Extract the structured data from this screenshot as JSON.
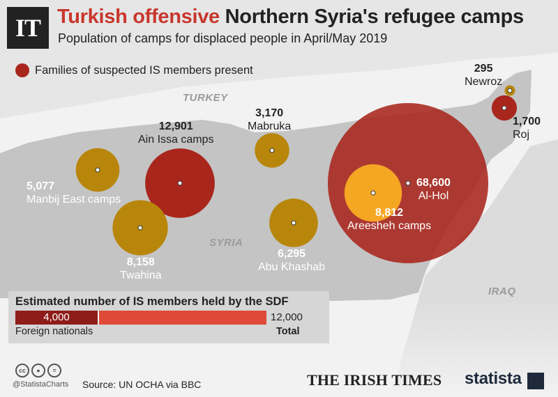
{
  "header": {
    "logo": "IT",
    "title_accent": "Turkish offensive",
    "title_rest": "Northern Syria's refugee camps",
    "subtitle": "Population of camps for displaced people in April/May 2019"
  },
  "legend": {
    "label": "Families of suspected IS members present",
    "color": "#a9261d"
  },
  "countries": {
    "turkey": "TURKEY",
    "syria": "SYRIA",
    "iraq": "IRAQ"
  },
  "colors": {
    "is_families_present": "#a9261d",
    "no_is_families": "#b8860b",
    "areesheh": "#f5a623",
    "land": "#c4c4c4",
    "background": "#f2f2f2"
  },
  "camps": [
    {
      "id": "al-hol",
      "name": "Al-Hol",
      "population_text": "68,600",
      "population": 68600,
      "is_families": true
    },
    {
      "id": "ain-issa",
      "name": "Ain Issa camps",
      "population_text": "12,901",
      "population": 12901,
      "is_families": true
    },
    {
      "id": "areesheh",
      "name": "Areesheh camps",
      "population_text": "8,812",
      "population": 8812,
      "is_families": false
    },
    {
      "id": "twahina",
      "name": "Twahina",
      "population_text": "8,158",
      "population": 8158,
      "is_families": false
    },
    {
      "id": "abu-khashab",
      "name": "Abu Khashab",
      "population_text": "6,295",
      "population": 6295,
      "is_families": false
    },
    {
      "id": "manbij-east",
      "name": "Manbij East camps",
      "population_text": "5,077",
      "population": 5077,
      "is_families": false
    },
    {
      "id": "mabruka",
      "name": "Mabruka",
      "population_text": "3,170",
      "population": 3170,
      "is_families": false
    },
    {
      "id": "roj",
      "name": "Roj",
      "population_text": "1,700",
      "population": 1700,
      "is_families": true
    },
    {
      "id": "newroz",
      "name": "Newroz",
      "population_text": "295",
      "population": 295,
      "is_families": false
    }
  ],
  "is_members": {
    "title": "Estimated number of IS members held by the SDF",
    "foreign_value": "4,000",
    "foreign_label": "Foreign nationals",
    "total_value": "12,000",
    "total_label": "Total",
    "foreign": 4000,
    "total": 12000
  },
  "footer": {
    "handle": "@StatistaCharts",
    "source": "Source: UN OCHA via BBC",
    "irish_times": "THE IRISH TIMES",
    "statista": "statista",
    "cc_icons": [
      "cc-icon",
      "attribution-icon",
      "no-derivatives-icon"
    ]
  }
}
